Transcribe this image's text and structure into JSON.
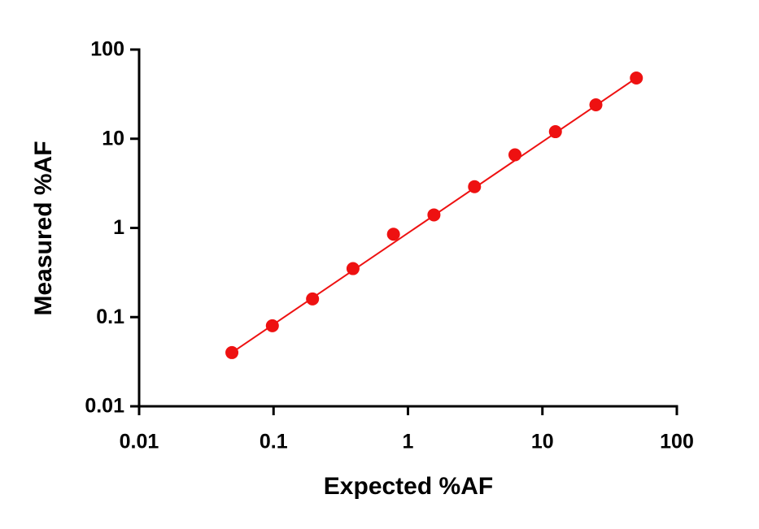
{
  "chart_data": {
    "type": "scatter",
    "x_label": "Expected %AF",
    "y_label": "Measured %AF",
    "x": [
      0.049,
      0.098,
      0.195,
      0.39,
      0.78,
      1.56,
      3.125,
      6.25,
      12.5,
      25,
      50
    ],
    "series": [
      {
        "color": "#ee1111",
        "values": [
          0.04,
          0.08,
          0.16,
          0.35,
          0.85,
          1.4,
          2.9,
          6.6,
          12,
          24,
          48
        ]
      }
    ],
    "fit_line": {
      "color": "#ee1111",
      "x": [
        0.049,
        50
      ],
      "values": [
        0.04,
        48
      ]
    },
    "xscale": "log",
    "yscale": "log",
    "xlim": [
      0.01,
      100
    ],
    "ylim": [
      0.01,
      100
    ],
    "xticks": [
      0.01,
      0.1,
      1,
      10,
      100
    ],
    "yticks": [
      0.01,
      0.1,
      1,
      10,
      100
    ]
  }
}
